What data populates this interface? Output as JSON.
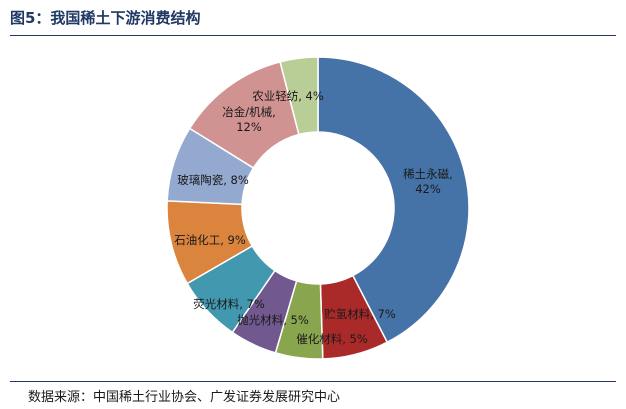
{
  "header": {
    "title": "图5：我国稀土下游消费结构"
  },
  "footer": {
    "source": "数据来源：中国稀土行业协会、广发证券发展研究中心"
  },
  "chart_data": {
    "type": "donut",
    "title": "图5：我国稀土下游消费结构",
    "unit": "%",
    "slices": [
      {
        "name": "稀土永磁",
        "value": 42,
        "color": "#4572A7",
        "label_lines": [
          "稀土永磁,",
          "42%"
        ]
      },
      {
        "name": "贮氢材料",
        "value": 7,
        "color": "#AA2A2A",
        "label_lines": [
          "贮氢材料, 7%"
        ]
      },
      {
        "name": "催化材料",
        "value": 5,
        "color": "#89A54E",
        "label_lines": [
          "催化材料, 5%"
        ]
      },
      {
        "name": "抛光材料",
        "value": 5,
        "color": "#71588F",
        "label_lines": [
          "抛光材料, 5%"
        ]
      },
      {
        "name": "荧光材料",
        "value": 7,
        "color": "#4198AF",
        "label_lines": [
          "荧光材料, 7%"
        ]
      },
      {
        "name": "石油化工",
        "value": 9,
        "color": "#DB843D",
        "label_lines": [
          "石油化工, 9%"
        ]
      },
      {
        "name": "玻璃陶瓷",
        "value": 8,
        "color": "#93A9CF",
        "label_lines": [
          "玻璃陶瓷, 8%"
        ]
      },
      {
        "name": "冶金/机械",
        "value": 12,
        "color": "#D19392",
        "label_lines": [
          "冶金/机械,",
          "12%"
        ]
      },
      {
        "name": "农业轻纺",
        "value": 4,
        "color": "#B9CD96",
        "label_lines": [
          "农业轻纺, 4%"
        ]
      }
    ]
  }
}
